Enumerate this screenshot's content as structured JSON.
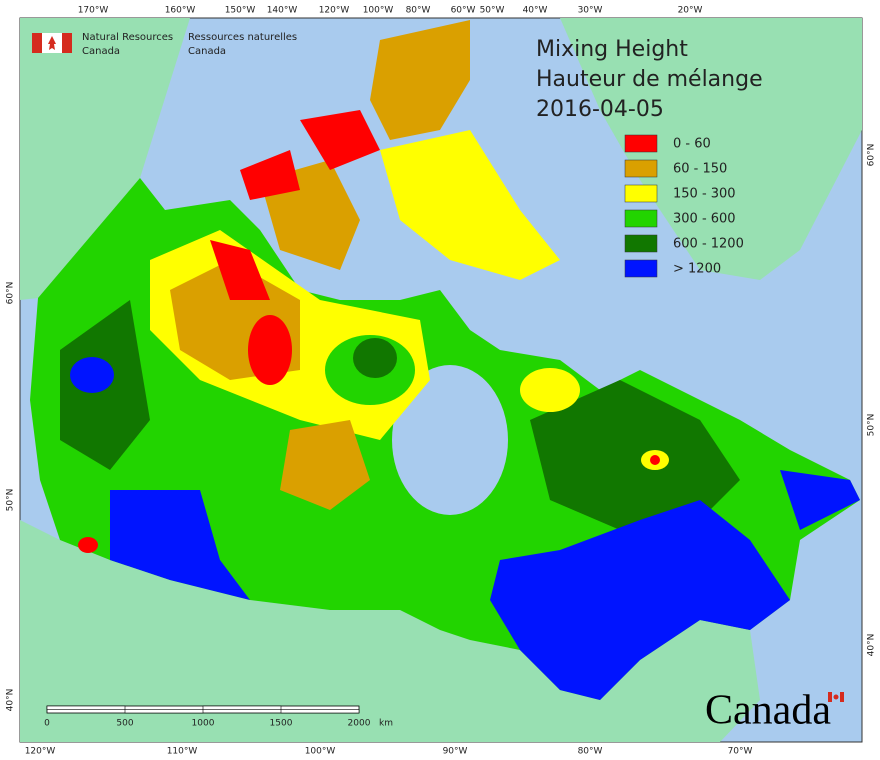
{
  "header": {
    "org_en": [
      "Natural Resources",
      "Canada"
    ],
    "org_fr": [
      "Ressources naturelles",
      "Canada"
    ]
  },
  "title": [
    "Mixing Height",
    "Hauteur de mélange",
    "2016-04-05"
  ],
  "legend": [
    {
      "label": "0 - 60",
      "color": "#ff0000"
    },
    {
      "label": "60 - 150",
      "color": "#daa000"
    },
    {
      "label": "150 - 300",
      "color": "#ffff00"
    },
    {
      "label": "300 - 600",
      "color": "#22d400"
    },
    {
      "label": "600 - 1200",
      "color": "#117700"
    },
    {
      "label": "> 1200",
      "color": "#0014ff"
    }
  ],
  "top_axis_labels": [
    "170°W",
    "160°W",
    "150°W",
    "140°W",
    "120°W",
    "100°W",
    "80°W",
    "60°W",
    "50°W",
    "40°W",
    "30°W",
    "20°W"
  ],
  "bottom_axis_labels": [
    "120°W",
    "110°W",
    "100°W",
    "90°W",
    "80°W",
    "70°W"
  ],
  "left_axis_labels": [
    "60°N",
    "50°N",
    "40°N"
  ],
  "right_axis_labels": [
    "60°N",
    "50°N",
    "40°N"
  ],
  "scale_bar": {
    "labels": [
      "0",
      "500",
      "1000",
      "1500",
      "2000"
    ],
    "unit": "km"
  },
  "wordmark": "Canada"
}
